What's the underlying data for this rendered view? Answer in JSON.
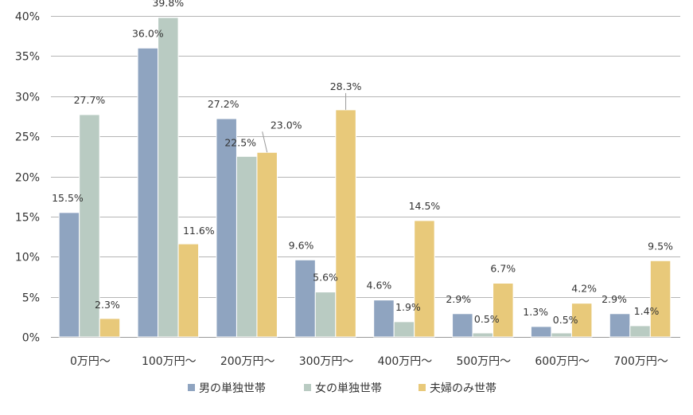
{
  "chart_data": {
    "type": "bar",
    "title": "",
    "xlabel": "",
    "ylabel": "",
    "ylim": [
      0,
      40
    ],
    "yticks": [
      0,
      5,
      10,
      15,
      20,
      25,
      30,
      35,
      40
    ],
    "y_tick_suffix": "%",
    "grid": true,
    "legend_position": "bottom",
    "categories": [
      "0万円～",
      "100万円～",
      "200万円～",
      "300万円～",
      "400万円～",
      "500万円～",
      "600万円～",
      "700万円～"
    ],
    "series": [
      {
        "name": "男の単独世帯",
        "color": "#8fa4c0",
        "values": [
          15.5,
          36.0,
          27.2,
          9.6,
          4.6,
          2.9,
          1.3,
          2.9
        ],
        "labels": [
          "15.5%",
          "36.0%",
          "27.2%",
          "9.6%",
          "4.6%",
          "2.9%",
          "1.3%",
          "2.9%"
        ]
      },
      {
        "name": "女の単独世帯",
        "color": "#b9cbc2",
        "values": [
          27.7,
          39.8,
          22.5,
          5.6,
          1.9,
          0.5,
          0.5,
          1.4
        ],
        "labels": [
          "27.7%",
          "39.8%",
          "22.5%",
          "5.6%",
          "1.9%",
          "0.5%",
          "0.5%",
          "1.4%"
        ]
      },
      {
        "name": "夫婦のみ世帯",
        "color": "#e8c97a",
        "values": [
          2.3,
          11.6,
          23.0,
          28.3,
          14.5,
          6.7,
          4.2,
          9.5
        ],
        "labels": [
          "2.3%",
          "11.6%",
          "23.0%",
          "28.3%",
          "14.5%",
          "6.7%",
          "4.2%",
          "9.5%"
        ]
      }
    ]
  }
}
